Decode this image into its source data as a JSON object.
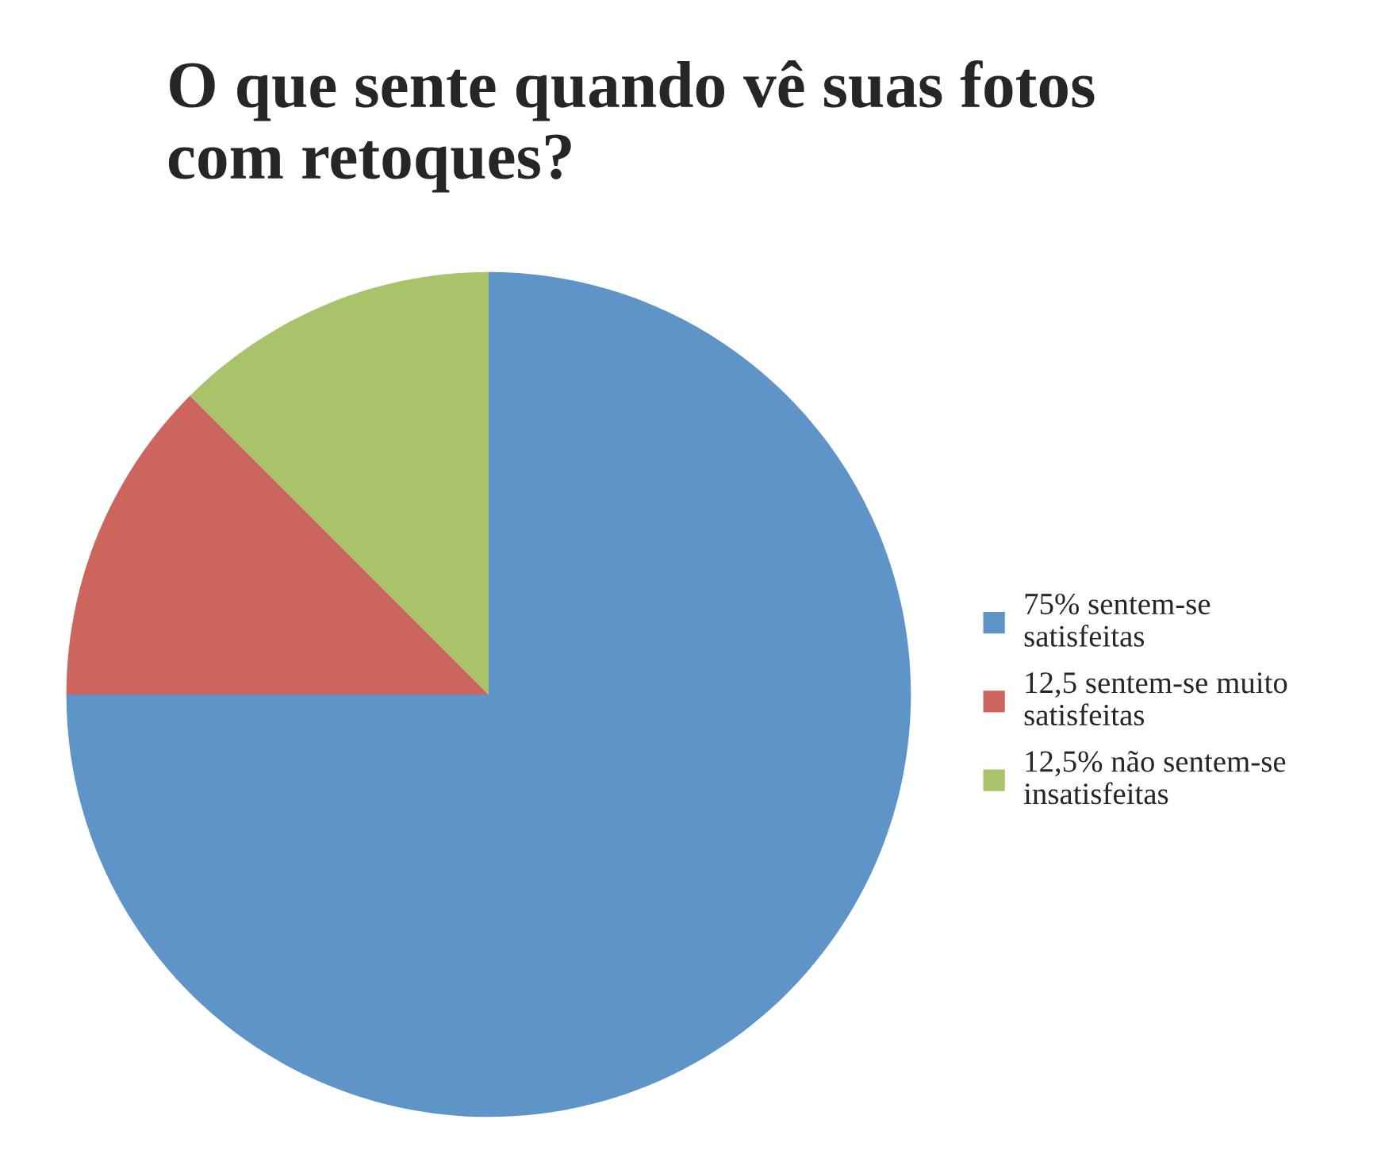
{
  "chart_data": {
    "type": "pie",
    "title": "O que sente quando vê suas fotos\ncom retoques?",
    "categories": [
      "75% sentem-se\nsatisfeitas",
      "12,5 sentem-se muito\nsatisfeitas",
      "12,5% não sentem-se\ninsatisfeitas"
    ],
    "values": [
      75,
      12.5,
      12.5
    ],
    "colors": [
      "#5f94c9",
      "#cb655e",
      "#a9c36a"
    ],
    "legend": "right"
  }
}
